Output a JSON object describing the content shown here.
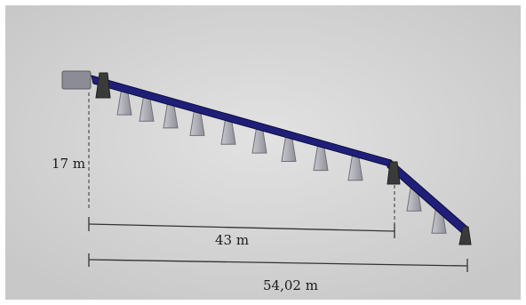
{
  "diagram": {
    "labels": {
      "height": "17 m",
      "first_span": "43 m",
      "total_span": "54,02 m"
    },
    "colors": {
      "background": "#d4d4d4",
      "boom": "#1f1f7a",
      "boom_edge": "#0d0d3d",
      "nozzle": "#a9a9b2",
      "nozzle_edge": "#6f6f78",
      "support": "#3a3a3a",
      "housing": "#8c8c96",
      "dimension_line": "#333333"
    }
  }
}
